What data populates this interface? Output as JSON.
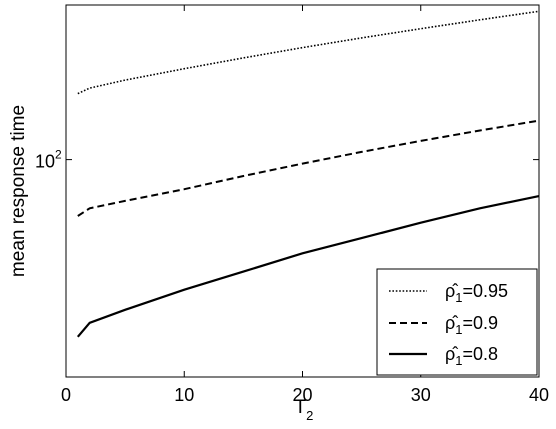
{
  "chart_data": {
    "type": "line",
    "xlabel": "T",
    "xlabel_sub": "2",
    "ylabel": "mean response time",
    "xlim": [
      0,
      40
    ],
    "ylim": [
      33,
      220
    ],
    "yscale": "log",
    "x_ticks": [
      {
        "value": 0,
        "label": "0"
      },
      {
        "value": 10,
        "label": "10"
      },
      {
        "value": 20,
        "label": "20"
      },
      {
        "value": 30,
        "label": "30"
      },
      {
        "value": 40,
        "label": "40"
      }
    ],
    "y_ticks": [
      {
        "value": 100,
        "label_base": "10",
        "label_exp": "2"
      }
    ],
    "grid": false,
    "legend_position": "bottom-right",
    "series": [
      {
        "name": "ρ̂1=0.95",
        "legend_prefix": "ρ̂",
        "legend_sub": "1",
        "legend_value": "=0.95",
        "style": "dotted",
        "x": [
          1,
          2,
          5,
          10,
          15,
          20,
          25,
          30,
          35,
          40
        ],
        "y": [
          140,
          144,
          150,
          159,
          168,
          177,
          186,
          195,
          204,
          213
        ]
      },
      {
        "name": "ρ̂1=0.9",
        "legend_prefix": "ρ̂",
        "legend_sub": "1",
        "legend_value": "=0.9",
        "style": "dashed",
        "x": [
          1,
          2,
          5,
          10,
          15,
          20,
          25,
          30,
          35,
          40
        ],
        "y": [
          75,
          78,
          81,
          86,
          92,
          98,
          104,
          110,
          116,
          122
        ]
      },
      {
        "name": "ρ̂1=0.8",
        "legend_prefix": "ρ̂",
        "legend_sub": "1",
        "legend_value": "=0.8",
        "style": "solid",
        "x": [
          1,
          2,
          5,
          10,
          15,
          20,
          25,
          30,
          35,
          40
        ],
        "y": [
          40.5,
          43.5,
          46.5,
          51.5,
          56.5,
          62,
          67,
          72.5,
          78,
          83
        ]
      }
    ]
  }
}
